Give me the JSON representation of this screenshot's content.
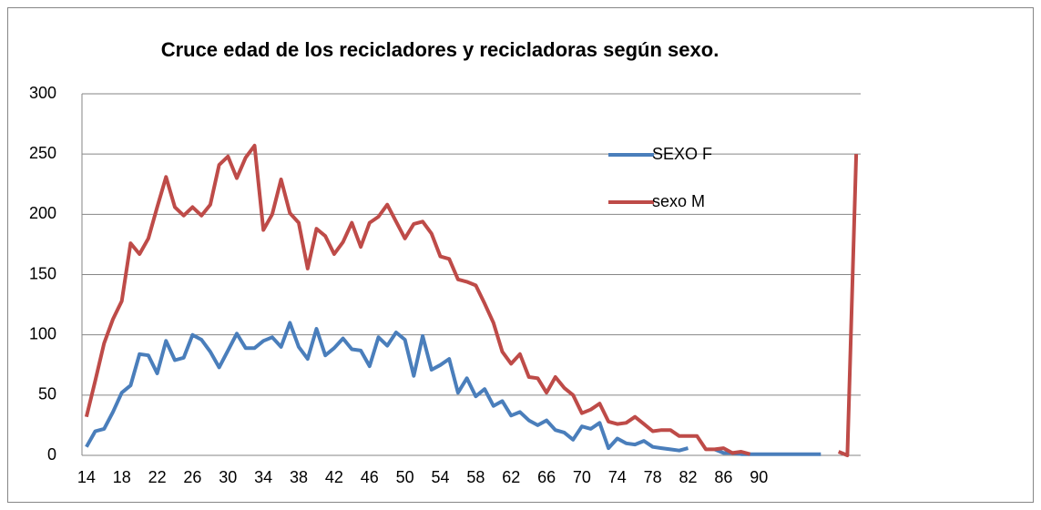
{
  "chart_data": {
    "type": "line",
    "title": "Cruce edad de los recicladores y recicladoras según sexo.",
    "categories": [
      "14",
      null,
      null,
      null,
      "18",
      null,
      null,
      null,
      "22",
      null,
      null,
      null,
      "26",
      null,
      null,
      null,
      "30",
      null,
      null,
      null,
      "34",
      null,
      null,
      null,
      "38",
      null,
      null,
      null,
      "42",
      null,
      null,
      null,
      "46",
      null,
      null,
      null,
      "50",
      null,
      null,
      null,
      "54",
      null,
      null,
      null,
      "58",
      null,
      null,
      null,
      "62",
      null,
      null,
      null,
      "66",
      null,
      null,
      null,
      "70",
      null,
      null,
      null,
      "74",
      null,
      null,
      null,
      "78",
      null,
      null,
      null,
      "82",
      null,
      null,
      null,
      "86",
      null,
      null,
      null,
      "90",
      null,
      null,
      null,
      null,
      null,
      null,
      null,
      null,
      null,
      null,
      null
    ],
    "series": [
      {
        "name": "SEXO F",
        "color": "#4a7ebb",
        "values": [
          7,
          20,
          22,
          36,
          52,
          58,
          84,
          83,
          68,
          95,
          79,
          81,
          100,
          96,
          86,
          73,
          87,
          101,
          89,
          89,
          95,
          98,
          90,
          110,
          90,
          80,
          105,
          83,
          89,
          97,
          88,
          87,
          74,
          98,
          91,
          102,
          96,
          66,
          99,
          71,
          75,
          80,
          52,
          64,
          49,
          55,
          41,
          45,
          33,
          36,
          29,
          25,
          29,
          21,
          19,
          13,
          24,
          22,
          27,
          6,
          14,
          10,
          9,
          12,
          7,
          6,
          5,
          4,
          6,
          null,
          null,
          5,
          2,
          2,
          1,
          1,
          1,
          1,
          1,
          1,
          1,
          1,
          1,
          1,
          null,
          null,
          null,
          null
        ]
      },
      {
        "name": "sexo M",
        "color": "#be4b48",
        "values": [
          32,
          62,
          93,
          113,
          128,
          176,
          167,
          180,
          206,
          231,
          206,
          199,
          206,
          199,
          208,
          241,
          248,
          230,
          247,
          257,
          187,
          200,
          229,
          201,
          193,
          155,
          188,
          182,
          167,
          177,
          193,
          173,
          193,
          198,
          208,
          194,
          180,
          192,
          194,
          184,
          165,
          163,
          146,
          144,
          141,
          126,
          110,
          86,
          76,
          84,
          65,
          64,
          52,
          65,
          56,
          50,
          35,
          38,
          43,
          28,
          26,
          27,
          32,
          26,
          20,
          21,
          21,
          16,
          16,
          16,
          5,
          5,
          6,
          2,
          3,
          1,
          null,
          null,
          null,
          null,
          null,
          null,
          null,
          null,
          null,
          3,
          0,
          250
        ]
      }
    ],
    "ylim": [
      0,
      300
    ],
    "yticks": [
      0,
      50,
      100,
      150,
      200,
      250,
      300
    ],
    "grid": true,
    "legend": "right"
  }
}
